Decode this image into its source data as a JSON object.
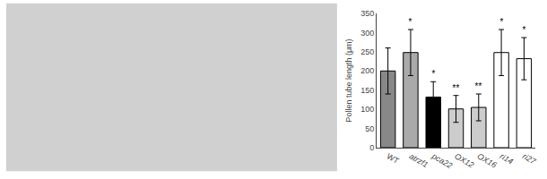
{
  "chart_data": {
    "type": "bar",
    "categories": [
      "WT",
      "atrzf1",
      "pca22",
      "OX12",
      "OX16",
      "ri14",
      "ri27"
    ],
    "values": [
      200,
      248,
      132,
      101,
      105,
      248,
      232
    ],
    "errors": [
      60,
      60,
      40,
      35,
      35,
      60,
      55
    ],
    "colors": [
      "#888888",
      "#aaaaaa",
      "#000000",
      "#cccccc",
      "#cccccc",
      "#ffffff",
      "#ffffff"
    ],
    "annotations": [
      {
        "x": "atrzf1",
        "text": "*"
      },
      {
        "x": "pca22",
        "text": "*"
      },
      {
        "x": "OX12",
        "text": "**"
      },
      {
        "x": "OX16",
        "text": "**"
      },
      {
        "x": "ri14",
        "text": "*"
      },
      {
        "x": "ri27",
        "text": "*"
      }
    ],
    "ylabel": "Pollen tube length (μm)",
    "ylim": [
      0,
      350
    ],
    "yticks": [
      0,
      50,
      100,
      150,
      200,
      250,
      300,
      350
    ],
    "grid": false
  }
}
